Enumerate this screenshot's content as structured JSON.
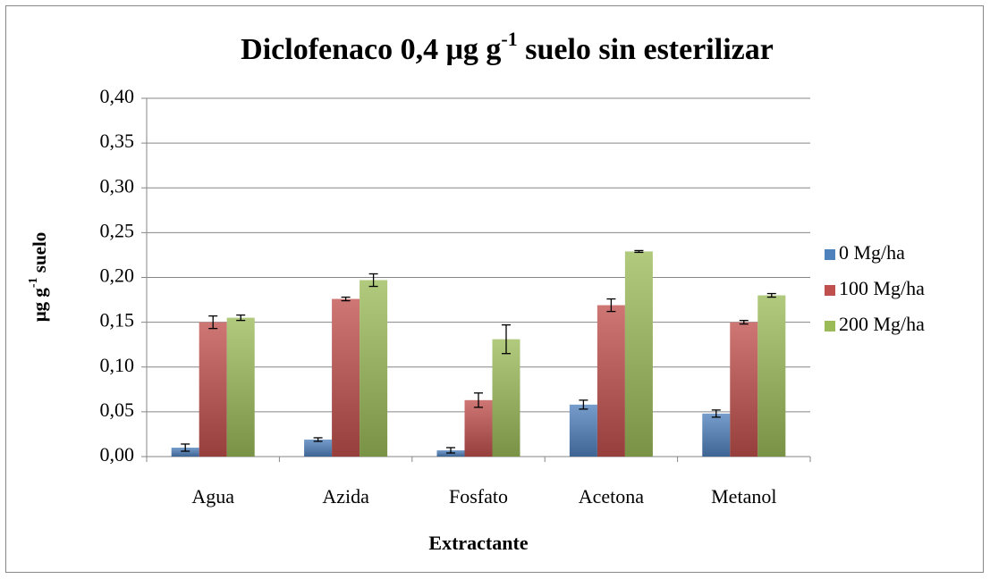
{
  "chart_data": {
    "type": "bar",
    "title": {
      "text": "Diclofenaco 0,4 μg g",
      "sup": "-1",
      "rest": " suelo sin esterilizar"
    },
    "y_label": {
      "text": "μg g",
      "sup": "-1",
      "rest": " suelo"
    },
    "x_label": "Extractante",
    "categories": [
      "Agua",
      "Azida",
      "Fosfato",
      "Acetona",
      "Metanol"
    ],
    "series": [
      {
        "name": "0 Mg/ha",
        "color": "#4f81bd",
        "values": [
          0.01,
          0.019,
          0.007,
          0.058,
          0.048
        ],
        "errors": [
          0.004,
          0.002,
          0.003,
          0.005,
          0.004
        ]
      },
      {
        "name": "100 Mg/ha",
        "color": "#c0504d",
        "values": [
          0.15,
          0.176,
          0.063,
          0.169,
          0.15
        ],
        "errors": [
          0.007,
          0.002,
          0.008,
          0.007,
          0.002
        ]
      },
      {
        "name": "200 Mg/ha",
        "color": "#9bbb59",
        "values": [
          0.155,
          0.197,
          0.131,
          0.229,
          0.18
        ],
        "errors": [
          0.003,
          0.007,
          0.016,
          0.001,
          0.002
        ]
      }
    ],
    "ylim": [
      0,
      0.4
    ],
    "yticks": [
      {
        "value": 0,
        "label": "0,00"
      },
      {
        "value": 0.05,
        "label": "0,05"
      },
      {
        "value": 0.1,
        "label": "0,10"
      },
      {
        "value": 0.15,
        "label": "0,15"
      },
      {
        "value": 0.2,
        "label": "0,20"
      },
      {
        "value": 0.25,
        "label": "0,25"
      },
      {
        "value": 0.3,
        "label": "0,30"
      },
      {
        "value": 0.35,
        "label": "0,35"
      },
      {
        "value": 0.4,
        "label": "0,40"
      }
    ],
    "grid": true,
    "legend": "right"
  }
}
